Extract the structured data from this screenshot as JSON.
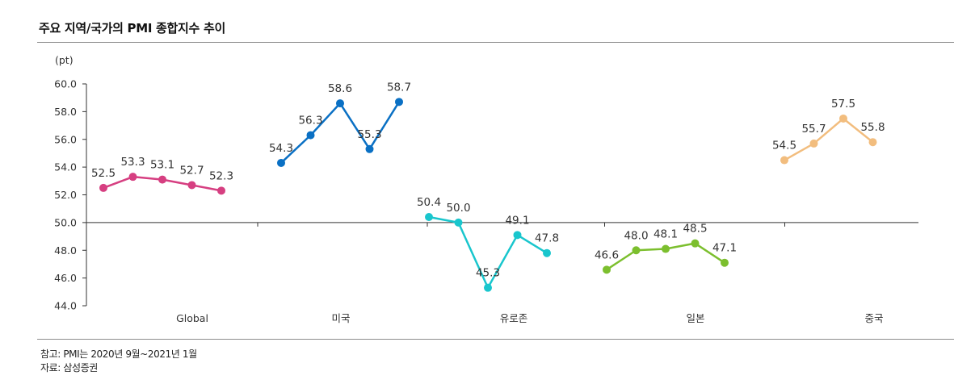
{
  "title": "주요 지역/국가의 PMI 종합지수 추이",
  "notes": {
    "reference": "참고: PMI는 2020년 9월~2021년 1월",
    "source": "자료: 삼성증권"
  },
  "chart_data": {
    "type": "line",
    "title": "주요 지역/국가의 PMI 종합지수 추이",
    "unit": "(pt)",
    "ylim": [
      44.0,
      60.0
    ],
    "yticks": [
      "60.0",
      "58.0",
      "56.0",
      "54.0",
      "52.0",
      "50.0",
      "48.0",
      "46.0",
      "44.0"
    ],
    "grid": false,
    "series": [
      {
        "name": "Global",
        "color": "#d63f81",
        "values": [
          52.5,
          53.3,
          53.1,
          52.7,
          52.3
        ],
        "labels": [
          "52.5",
          "53.3",
          "53.1",
          "52.7",
          "52.3"
        ]
      },
      {
        "name": "미국",
        "color": "#0a70c4",
        "values": [
          54.3,
          56.3,
          58.6,
          55.3,
          58.7
        ],
        "labels": [
          "54.3",
          "56.3",
          "58.6",
          "55.3",
          "58.7"
        ]
      },
      {
        "name": "유로존",
        "color": "#19c6cd",
        "values": [
          50.4,
          50.0,
          45.3,
          49.1,
          47.8
        ],
        "labels": [
          "50.4",
          "50.0",
          "45.3",
          "49.1",
          "47.8"
        ]
      },
      {
        "name": "일본",
        "color": "#7cbf2e",
        "values": [
          46.6,
          48.0,
          48.1,
          48.5,
          47.1
        ],
        "labels": [
          "46.6",
          "48.0",
          "48.1",
          "48.5",
          "47.1"
        ]
      },
      {
        "name": "중국",
        "color": "#f2bd7e",
        "values": [
          54.5,
          55.7,
          57.5,
          55.8
        ],
        "labels": [
          "54.5",
          "55.7",
          "57.5",
          "55.8"
        ]
      }
    ]
  }
}
